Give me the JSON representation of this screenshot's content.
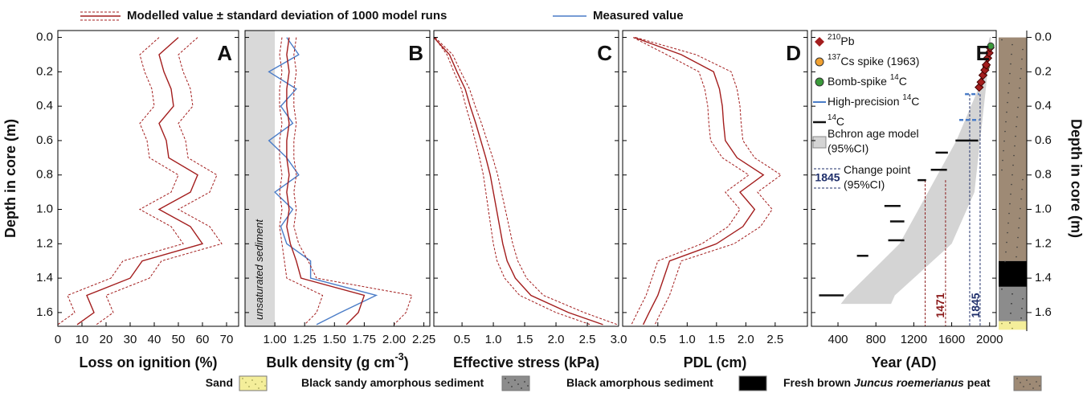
{
  "legend": [
    {
      "label": "Modelled value ± standard deviation of 1000 model runs",
      "color": "#a31d1d"
    },
    {
      "label": "Measured value",
      "color": "#4a7cc7"
    }
  ],
  "depth_axis": {
    "label": "Depth in core (m)",
    "ylim": [
      -0.04,
      1.68
    ],
    "yticks": [
      {
        "value": 0,
        "label": "0.0"
      },
      0.2,
      0.4,
      0.6,
      0.8,
      {
        "value": 1,
        "label": "1.0"
      },
      1.2,
      1.4,
      1.6
    ]
  },
  "chart_data": [
    {
      "type": "line",
      "letter": "A",
      "xlabel": [
        {
          "text": "Loss on ignition (%)"
        }
      ],
      "xlim": [
        0,
        75
      ],
      "xticks": [
        0,
        10,
        20,
        30,
        40,
        50,
        60,
        70
      ],
      "y": [
        0,
        0.1,
        0.2,
        0.3,
        0.4,
        0.5,
        0.6,
        0.7,
        0.8,
        0.9,
        1.0,
        1.1,
        1.2,
        1.3,
        1.4,
        1.5,
        1.6,
        1.67
      ],
      "series": [
        {
          "color": "#a31d1d",
          "dash": false,
          "values": [
            50,
            42,
            44,
            47,
            48,
            42,
            45,
            46,
            58,
            55,
            42,
            55,
            60,
            35,
            30,
            12,
            15,
            8
          ]
        },
        {
          "color": "#a31d1d",
          "dash": true,
          "values": [
            58,
            50,
            52,
            55,
            56,
            50,
            53,
            54,
            66,
            63,
            50,
            63,
            68,
            43,
            38,
            20,
            23,
            16
          ]
        },
        {
          "color": "#a31d1d",
          "dash": true,
          "values": [
            42,
            34,
            36,
            39,
            40,
            34,
            37,
            38,
            50,
            47,
            34,
            47,
            52,
            27,
            22,
            4,
            7,
            0
          ]
        }
      ]
    },
    {
      "type": "line",
      "letter": "B",
      "xlabel": [
        {
          "text": "Bulk density (g cm"
        },
        {
          "sup": "-3"
        },
        {
          "text": ")"
        }
      ],
      "xlim": [
        0.75,
        2.3
      ],
      "xticks": [
        {
          "value": 1,
          "label": "1.00"
        },
        {
          "value": 1.25,
          "label": "1.25"
        },
        {
          "value": 1.5,
          "label": "1.50"
        },
        {
          "value": 1.75,
          "label": "1.75"
        },
        {
          "value": 2,
          "label": "2.00"
        },
        {
          "value": 2.25,
          "label": "2.25"
        }
      ],
      "band_to": 1.0,
      "band_color": "#d9d9d9",
      "band_label": "unsaturated sediment",
      "y": [
        0,
        0.1,
        0.2,
        0.3,
        0.4,
        0.5,
        0.6,
        0.7,
        0.8,
        0.9,
        1.0,
        1.1,
        1.2,
        1.3,
        1.4,
        1.5,
        1.6,
        1.67
      ],
      "series": [
        {
          "color": "#4a7cc7",
          "dash": false,
          "values": [
            1.1,
            1.2,
            0.95,
            1.18,
            1.05,
            1.15,
            0.95,
            1.1,
            1.2,
            1.0,
            1.15,
            1.05,
            1.1,
            1.3,
            1.3,
            1.85,
            1.55,
            1.35
          ]
        },
        {
          "color": "#a31d1d",
          "dash": false,
          "values": [
            1.12,
            1.1,
            1.12,
            1.1,
            1.1,
            1.12,
            1.1,
            1.1,
            1.12,
            1.1,
            1.12,
            1.1,
            1.13,
            1.18,
            1.22,
            1.75,
            1.7,
            1.6
          ]
        },
        {
          "color": "#a31d1d",
          "dash": true,
          "values": [
            1.18,
            1.16,
            1.18,
            1.16,
            1.16,
            1.18,
            1.16,
            1.16,
            1.18,
            1.16,
            1.18,
            1.16,
            1.2,
            1.28,
            1.35,
            2.15,
            2.1,
            2.0
          ]
        },
        {
          "color": "#a31d1d",
          "dash": true,
          "values": [
            1.06,
            1.04,
            1.06,
            1.04,
            1.04,
            1.06,
            1.04,
            1.04,
            1.06,
            1.04,
            1.06,
            1.04,
            1.06,
            1.08,
            1.1,
            1.4,
            1.35,
            1.25
          ]
        }
      ]
    },
    {
      "type": "line",
      "letter": "C",
      "xlabel": [
        {
          "text": "Effective stress (kPa)"
        }
      ],
      "xlim": [
        0.05,
        3.0
      ],
      "xticks": [
        0.5,
        {
          "value": 1,
          "label": "1.0"
        },
        1.5,
        {
          "value": 2,
          "label": "2.0"
        },
        2.5,
        {
          "value": 3,
          "label": "3.0"
        }
      ],
      "y": [
        0,
        0.1,
        0.2,
        0.3,
        0.4,
        0.5,
        0.6,
        0.7,
        0.8,
        0.9,
        1.0,
        1.1,
        1.2,
        1.3,
        1.4,
        1.5,
        1.6,
        1.67
      ],
      "series": [
        {
          "color": "#a31d1d",
          "dash": false,
          "values": [
            0.05,
            0.3,
            0.42,
            0.55,
            0.63,
            0.72,
            0.8,
            0.88,
            0.95,
            1.0,
            1.05,
            1.1,
            1.15,
            1.22,
            1.35,
            1.6,
            2.2,
            2.75
          ]
        },
        {
          "color": "#a31d1d",
          "dash": true,
          "values": [
            0.07,
            0.35,
            0.48,
            0.62,
            0.71,
            0.81,
            0.9,
            0.99,
            1.07,
            1.13,
            1.19,
            1.25,
            1.31,
            1.39,
            1.53,
            1.8,
            2.45,
            2.98
          ]
        },
        {
          "color": "#a31d1d",
          "dash": true,
          "values": [
            0.06,
            0.26,
            0.37,
            0.49,
            0.56,
            0.64,
            0.71,
            0.78,
            0.84,
            0.88,
            0.92,
            0.96,
            1.0,
            1.06,
            1.18,
            1.42,
            2.0,
            2.55
          ]
        }
      ]
    },
    {
      "type": "line",
      "letter": "D",
      "xlabel": [
        {
          "text": "PDL (cm)"
        }
      ],
      "xlim": [
        -0.1,
        3.05
      ],
      "xticks": [
        0.5,
        {
          "value": 1,
          "label": "1.0"
        },
        1.5,
        {
          "value": 2,
          "label": "2.0"
        },
        2.5
      ],
      "y": [
        0,
        0.1,
        0.2,
        0.3,
        0.4,
        0.5,
        0.6,
        0.7,
        0.8,
        0.9,
        1.0,
        1.1,
        1.2,
        1.3,
        1.4,
        1.5,
        1.6,
        1.67
      ],
      "series": [
        {
          "color": "#a31d1d",
          "dash": false,
          "values": [
            0.1,
            0.9,
            1.45,
            1.55,
            1.6,
            1.62,
            1.65,
            1.85,
            2.3,
            1.9,
            2.15,
            1.95,
            1.5,
            0.7,
            0.6,
            0.5,
            0.35,
            0.25
          ]
        },
        {
          "color": "#a31d1d",
          "dash": true,
          "values": [
            0.12,
            1.15,
            1.75,
            1.85,
            1.9,
            1.92,
            1.95,
            2.15,
            2.6,
            2.2,
            2.45,
            2.25,
            1.8,
            0.9,
            0.8,
            0.7,
            0.55,
            0.45
          ]
        },
        {
          "color": "#a31d1d",
          "dash": true,
          "values": [
            0.08,
            0.65,
            1.2,
            1.3,
            1.35,
            1.37,
            1.4,
            1.6,
            2.05,
            1.65,
            1.9,
            1.7,
            1.25,
            0.5,
            0.4,
            0.3,
            0.15,
            0.05
          ]
        }
      ]
    },
    {
      "type": "age_depth",
      "letter": "E",
      "xlabel": [
        {
          "text": "Year (AD)"
        }
      ],
      "xlim": [
        120,
        2070
      ],
      "xticks": [
        400,
        800,
        1200,
        1600,
        2000
      ],
      "age_model": {
        "color": "#d4d4d4",
        "y": [
          0,
          0.3,
          0.6,
          0.9,
          1.2,
          1.5,
          1.55
        ],
        "older": [
          2000,
          1880,
          1650,
          1350,
          1050,
          500,
          430
        ],
        "younger": [
          2015,
          1960,
          1900,
          1840,
          1600,
          1000,
          960
        ]
      },
      "c14": {
        "color": "#111111",
        "y": [
          0.6,
          0.67,
          0.77,
          0.83,
          0.98,
          1.07,
          1.18,
          1.27,
          1.5
        ],
        "from": [
          1640,
          1430,
          1380,
          1240,
          890,
          950,
          930,
          600,
          200
        ],
        "to": [
          1880,
          1560,
          1550,
          1330,
          1060,
          1100,
          1100,
          720,
          460
        ]
      },
      "hp14c": {
        "color": "#4a7cc7",
        "y": [
          0.33,
          0.48
        ],
        "from": [
          1740,
          1680
        ],
        "to": [
          1890,
          1890
        ]
      },
      "cs137": {
        "color": "#f0a030",
        "x": [
          1963
        ],
        "y": [
          0.17
        ]
      },
      "pb210": {
        "color": "#a31d1d",
        "x": [
          1890,
          1910,
          1930,
          1950,
          1965,
          1980,
          1995,
          2005
        ],
        "y": [
          0.29,
          0.26,
          0.22,
          0.19,
          0.16,
          0.12,
          0.09,
          0.06
        ]
      },
      "bomb": {
        "color": "#3a9a3a",
        "x": [
          2012
        ],
        "y": [
          0.05
        ]
      },
      "change_points": [
        {
          "value": 1471,
          "color": "#8b1a1a",
          "ci": [
            1320,
            1535
          ],
          "from_depth": 0.83
        },
        {
          "value": 1845,
          "color": "#1f2f6b",
          "ci": [
            1790,
            1900
          ],
          "from_depth": 0.33
        }
      ],
      "key": [
        {
          "label": [
            {
              "sup": "210"
            },
            {
              "text": "Pb"
            }
          ]
        },
        {
          "label": [
            {
              "sup": "137"
            },
            {
              "text": "Cs spike (1963)"
            }
          ]
        },
        {
          "label": [
            {
              "text": "Bomb-spike "
            },
            {
              "sup": "14"
            },
            {
              "text": "C"
            }
          ]
        },
        {
          "label": [
            {
              "text": "High-precision "
            },
            {
              "sup": "14"
            },
            {
              "text": "C"
            }
          ]
        },
        {
          "label": [
            {
              "sup": "14"
            },
            {
              "text": "C"
            }
          ]
        },
        {
          "label": [
            {
              "text": "Bchron age model"
            }
          ],
          "label2": "(95%CI)"
        },
        {
          "label": [
            {
              "text": "Change point"
            }
          ],
          "label2": "(95%CI)"
        }
      ]
    },
    {
      "type": "lithology",
      "ylabel": "Depth in core (m)",
      "layers": [
        {
          "name": [
            {
              "text": "Sand"
            }
          ],
          "color": "#f4ee9a",
          "dots": "#8a8a40",
          "top": 1.65,
          "bottom": 1.7
        },
        {
          "name": [
            {
              "text": "Black sandy amorphous sediment"
            }
          ],
          "color": "#8c8c8c",
          "dots": "#222222",
          "top": 1.45,
          "bottom": 1.65
        },
        {
          "name": [
            {
              "text": "Black amorphous sediment"
            }
          ],
          "color": "#000000",
          "dots": null,
          "top": 1.3,
          "bottom": 1.45
        },
        {
          "name": [
            {
              "text": "Fresh brown "
            },
            {
              "italic": "Juncus roemerianus"
            },
            {
              "text": " peat"
            }
          ],
          "color": "#9e8a75",
          "dots": "#3b3b3b",
          "top": 0,
          "bottom": 1.3
        }
      ]
    }
  ]
}
